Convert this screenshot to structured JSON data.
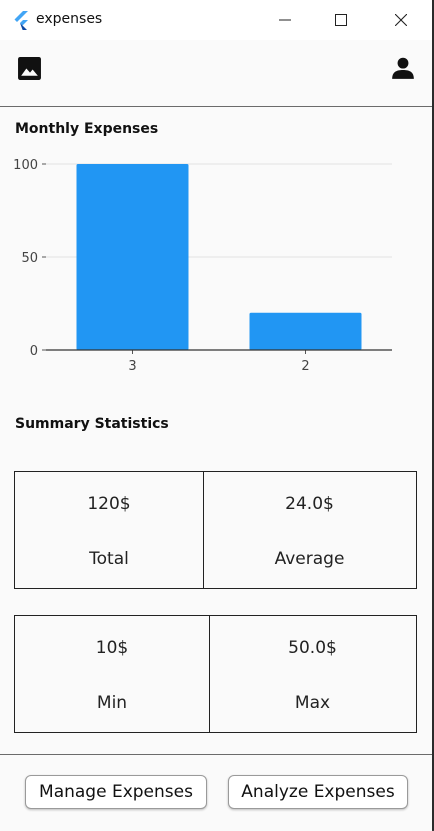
{
  "window": {
    "title": "expenses"
  },
  "appbar": {
    "left_icon": "image-icon",
    "right_icon": "person-icon"
  },
  "chart_section": {
    "title": "Monthly Expenses"
  },
  "chart_data": {
    "type": "bar",
    "categories": [
      "3",
      "2"
    ],
    "values": [
      100,
      20
    ],
    "ylim": [
      0,
      100
    ],
    "yticks": [
      0,
      50,
      100
    ],
    "grid": true,
    "bar_color": "#2196f3"
  },
  "summary": {
    "title": "Summary Statistics",
    "total_value": "120$",
    "total_label": "Total",
    "average_value": "24.0$",
    "average_label": "Average",
    "min_value": "10$",
    "min_label": "Min",
    "max_value": "50.0$",
    "max_label": "Max"
  },
  "buttons": {
    "manage": "Manage Expenses",
    "analyze": "Analyze Expenses"
  },
  "colors": {
    "accent": "#2196f3",
    "background": "#fafafa",
    "border": "#222222"
  }
}
